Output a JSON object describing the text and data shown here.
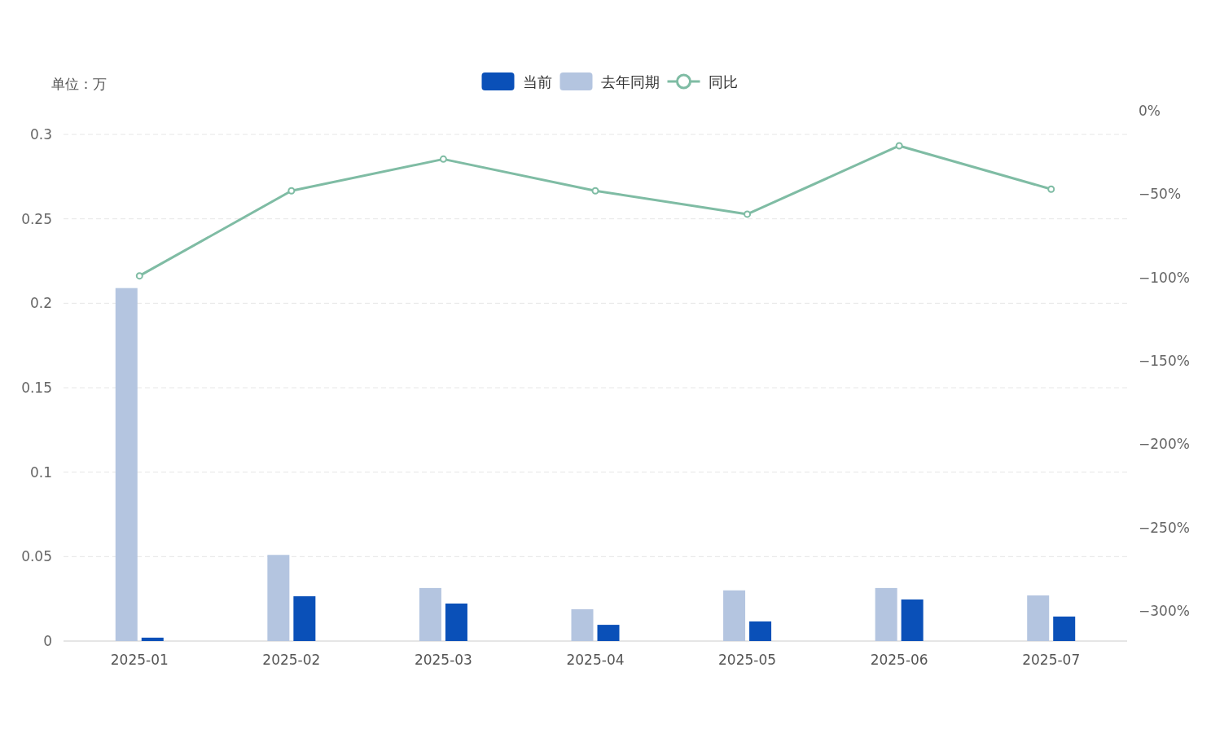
{
  "chart_data": {
    "type": "bar",
    "ylabel": "单位：万",
    "categories": [
      "2025-01",
      "2025-02",
      "2025-03",
      "2025-04",
      "2025-05",
      "2025-06",
      "2025-07"
    ],
    "series": [
      {
        "name": "当前",
        "color": "#0a50b8",
        "values": [
          0.002,
          0.0265,
          0.0222,
          0.0096,
          0.0116,
          0.0246,
          0.0145
        ]
      },
      {
        "name": "去年同期",
        "color": "#b4c5e0",
        "values": [
          0.209,
          0.051,
          0.0314,
          0.0188,
          0.03,
          0.0314,
          0.027
        ]
      },
      {
        "name": "同比",
        "type": "line",
        "axis": "y2",
        "color": "#7fbca4",
        "marker": "circle",
        "values": [
          -99,
          -48,
          -29,
          -48,
          -62,
          -21,
          -47
        ]
      }
    ],
    "ylim": [
      0,
      0.3
    ],
    "yticks": [
      0,
      0.05,
      0.1,
      0.15,
      0.2,
      0.25,
      0.3
    ],
    "y2lim": [
      -318,
      0
    ],
    "y2ticks": [
      {
        "value": 0,
        "label": "0%"
      },
      {
        "value": -50,
        "label": "−50%"
      },
      {
        "value": -100,
        "label": "−100%"
      },
      {
        "value": -150,
        "label": "−150%"
      },
      {
        "value": -200,
        "label": "−200%"
      },
      {
        "value": -250,
        "label": "−250%"
      },
      {
        "value": -300,
        "label": "−300%"
      }
    ],
    "grid": "y",
    "legend": "top"
  }
}
